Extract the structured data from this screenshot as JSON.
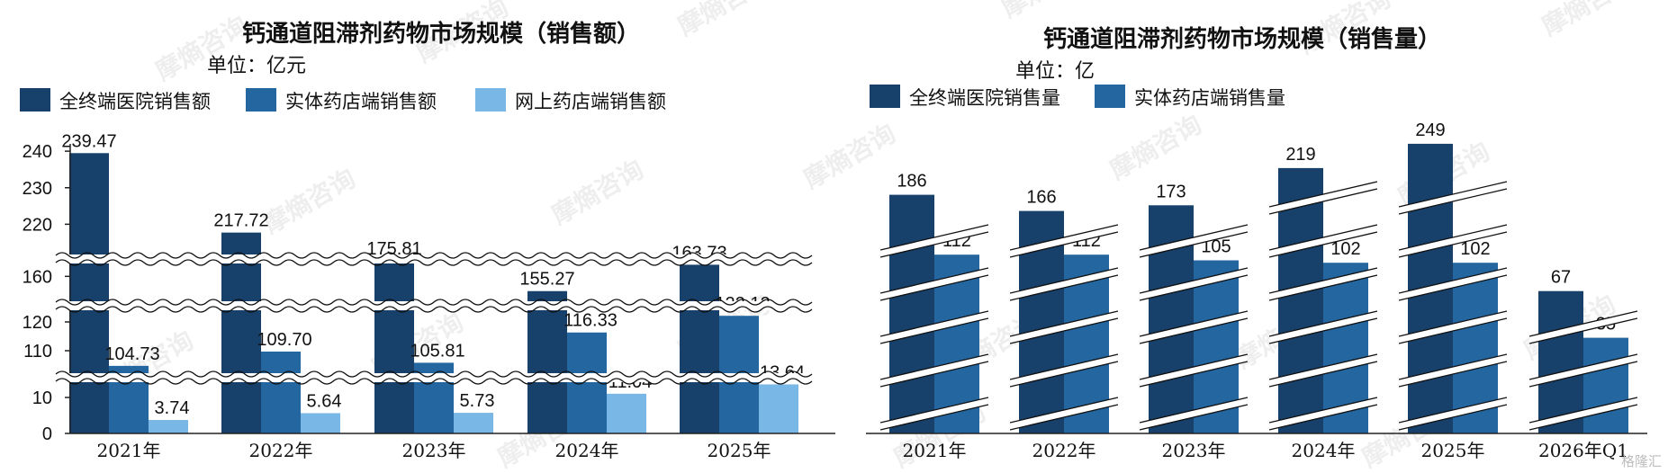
{
  "chart_data": [
    {
      "type": "bar",
      "title": "钙通道阻滞剂药物市场规模（销售额）",
      "subtitle": "单位：亿元",
      "categories": [
        "2021年",
        "2022年",
        "2023年",
        "2024年",
        "2025年"
      ],
      "series": [
        {
          "name": "全终端医院销售额",
          "values": [
            239.47,
            217.72,
            175.81,
            155.27,
            163.73
          ],
          "value_labels": [
            "239.47",
            "217.72",
            "175.81",
            "155.27",
            "163.73"
          ]
        },
        {
          "name": "实体药店端销售额",
          "values": [
            104.73,
            109.7,
            105.81,
            116.33,
            122.12
          ],
          "value_labels": [
            "104.73",
            "109.70",
            "105.81",
            "116.33",
            "122.12"
          ]
        },
        {
          "name": "网上药店端销售额",
          "values": [
            3.74,
            5.64,
            5.73,
            11.04,
            13.64
          ],
          "value_labels": [
            "3.74",
            "5.64",
            "5.73",
            "11.04",
            "13.64"
          ]
        }
      ],
      "y_ticks": [
        "0",
        "10",
        "110",
        "120",
        "160",
        "220",
        "230",
        "240"
      ],
      "y_axis_breaks": [
        [
          15,
          100
        ],
        [
          125,
          150
        ],
        [
          165,
          210
        ]
      ],
      "legend_position": "top",
      "grid": false
    },
    {
      "type": "bar",
      "title": "钙通道阻滞剂药物市场规模（销售量）",
      "subtitle": "单位：亿",
      "categories": [
        "2021年",
        "2022年",
        "2023年",
        "2024年",
        "2025年",
        "2026年Q1"
      ],
      "series": [
        {
          "name": "全终端医院销售量",
          "values": [
            186,
            166,
            173,
            219,
            249,
            67
          ],
          "value_labels": [
            "186",
            "166",
            "173",
            "219",
            "249",
            "67"
          ]
        },
        {
          "name": "实体药店端销售量",
          "values": [
            112,
            112,
            105,
            102,
            102,
            35
          ],
          "value_labels": [
            "112",
            "112",
            "105",
            "102",
            "102",
            "35"
          ]
        }
      ],
      "y_axis_breaks": "broken axis, no tick labels",
      "legend_position": "top",
      "grid": false
    }
  ],
  "colors": {
    "dark_navy": "#17406a",
    "medium_blue": "#2366a0",
    "light_blue": "#78b7e6",
    "axis": "#222222",
    "break": "#ffffff",
    "watermark": "#d9d9d9"
  },
  "watermark": {
    "brand": "摩熵咨询",
    "corner": "格隆汇"
  }
}
